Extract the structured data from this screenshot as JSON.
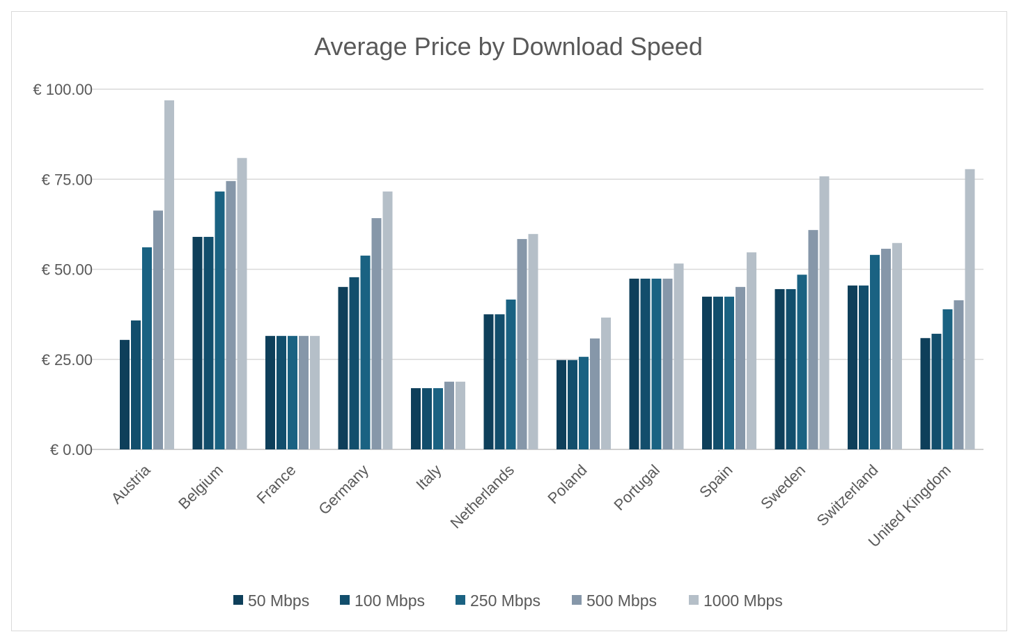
{
  "chart_data": {
    "type": "bar",
    "title": "Average Price by Download Speed",
    "xlabel": "",
    "ylabel": "",
    "ylim": [
      0,
      100
    ],
    "yticks": [
      0,
      25,
      50,
      75,
      100
    ],
    "ytick_labels": [
      "€ 0.00",
      "€ 25.00",
      "€ 50.00",
      "€ 75.00",
      "€ 100.00"
    ],
    "grid": true,
    "legend_position": "bottom",
    "categories": [
      "Austria",
      "Belgium",
      "France",
      "Germany",
      "Italy",
      "Netherlands",
      "Poland",
      "Portugal",
      "Spain",
      "Sweden",
      "Switzerland",
      "United Kingdom"
    ],
    "series": [
      {
        "name": "50 Mbps",
        "color": "#0e3f5a",
        "values": [
          30.4,
          59.0,
          31.5,
          45.1,
          17.0,
          37.5,
          24.8,
          47.4,
          42.4,
          44.5,
          45.5,
          30.9
        ]
      },
      {
        "name": "100 Mbps",
        "color": "#124e6c",
        "values": [
          35.8,
          59.0,
          31.5,
          47.8,
          17.0,
          37.5,
          24.8,
          47.4,
          42.4,
          44.5,
          45.5,
          32.1
        ]
      },
      {
        "name": "250 Mbps",
        "color": "#1a6282",
        "values": [
          56.1,
          71.6,
          31.5,
          53.8,
          17.0,
          41.6,
          25.7,
          47.4,
          42.4,
          48.5,
          54.0,
          38.9
        ]
      },
      {
        "name": "500 Mbps",
        "color": "#8697a9",
        "values": [
          66.3,
          74.5,
          31.5,
          64.2,
          18.8,
          58.4,
          30.8,
          47.4,
          45.1,
          60.9,
          55.7,
          41.4
        ]
      },
      {
        "name": "1000 Mbps",
        "color": "#b5bfc8",
        "values": [
          96.9,
          80.9,
          31.5,
          71.6,
          18.8,
          59.8,
          36.6,
          51.6,
          54.7,
          75.8,
          57.3,
          77.8
        ]
      }
    ]
  }
}
